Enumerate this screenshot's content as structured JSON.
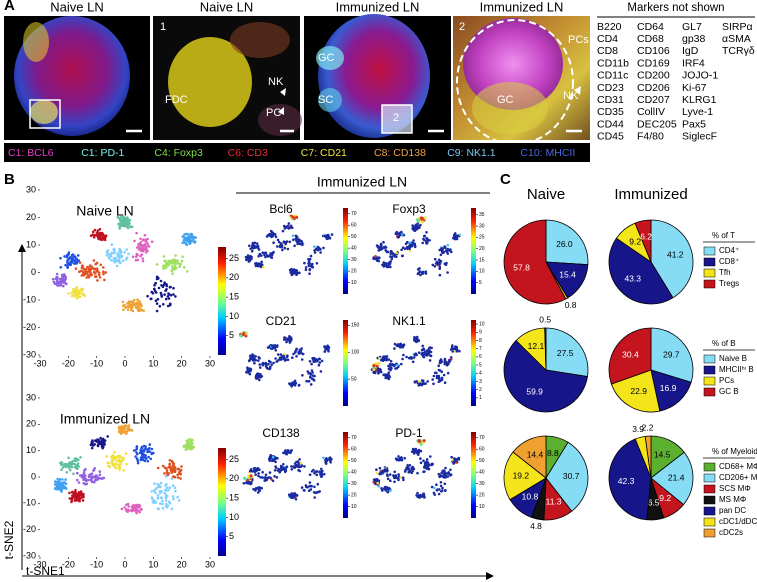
{
  "panel_a": {
    "label": "A",
    "images": [
      {
        "title": "Naive LN",
        "annotations": []
      },
      {
        "title": "Naive LN",
        "annotations": [
          "1",
          "FDC",
          "NK",
          "PC"
        ]
      },
      {
        "title": "Immunized LN",
        "annotations": [
          "GC",
          "SC",
          "2"
        ]
      },
      {
        "title": "Immunized LN",
        "annotations": [
          "2",
          "PCs",
          "GC",
          "NK"
        ]
      }
    ],
    "channels": [
      {
        "text": "C1: BCL6",
        "color": "#e040c8"
      },
      {
        "text": "C1: PD-1",
        "color": "#6ff0f0"
      },
      {
        "text": "C4: Foxp3",
        "color": "#7ee04a"
      },
      {
        "text": "C6: CD3",
        "color": "#e8303a"
      },
      {
        "text": "C7: CD21",
        "color": "#f0e040"
      },
      {
        "text": "C8: CD138",
        "color": "#f0a040"
      },
      {
        "text": "C9: NK1.1",
        "color": "#78c8f0"
      },
      {
        "text": "C10: MHCII",
        "color": "#4a6ae0"
      }
    ],
    "markers": {
      "title": "Markers not shown",
      "columns": [
        [
          "B220",
          "CD4",
          "CD8",
          "CD11b",
          "CD11c",
          "CD23",
          "CD31",
          "CD35",
          "CD44",
          "CD45"
        ],
        [
          "CD64",
          "CD68",
          "CD106",
          "CD169",
          "CD200",
          "CD206",
          "CD207",
          "CollIV",
          "DEC205",
          "F4/80"
        ],
        [
          "GL7",
          "gp38",
          "IgD",
          "IRF4",
          "JOJO-1",
          "Ki-67",
          "KLRG1",
          "Lyve-1",
          "Pax5",
          "SiglecF"
        ],
        [
          "SIRPα",
          "αSMA",
          "TCRγδ"
        ]
      ]
    }
  },
  "panel_b": {
    "label": "B",
    "x_label": "t-SNE1",
    "y_label": "t-SNE2",
    "xlim": [
      -30,
      30
    ],
    "ylim": [
      -30,
      30
    ],
    "xticks": [
      -30,
      -20,
      -10,
      0,
      10,
      20,
      30
    ],
    "yticks": [
      -30,
      -20,
      -10,
      0,
      10,
      20,
      30
    ],
    "tsne": [
      {
        "title": "Naive LN"
      },
      {
        "title": "Immunized LN"
      }
    ],
    "colorbar": {
      "lim": [
        0,
        28
      ],
      "ticks": [
        5,
        10,
        15,
        20,
        25
      ]
    },
    "markers_title": "Immunized LN",
    "markers": [
      {
        "title": "Bcl6",
        "lim": [
          0,
          75
        ],
        "ticks": [
          10,
          20,
          30,
          40,
          50,
          60,
          70
        ]
      },
      {
        "title": "Foxp3",
        "lim": [
          0,
          38
        ],
        "ticks": [
          5,
          10,
          15,
          20,
          25,
          30,
          35
        ]
      },
      {
        "title": "CD21",
        "lim": [
          0,
          160
        ],
        "ticks": [
          50,
          100,
          150
        ]
      },
      {
        "title": "NK1.1",
        "lim": [
          0,
          10.5
        ],
        "ticks": [
          1,
          2,
          3,
          4,
          5,
          6,
          7,
          8,
          9,
          10
        ]
      },
      {
        "title": "CD138",
        "lim": [
          0,
          75
        ],
        "ticks": [
          10,
          20,
          30,
          40,
          50,
          60,
          70
        ]
      },
      {
        "title": "PD-1",
        "lim": [
          0,
          75
        ],
        "ticks": [
          10,
          20,
          30,
          40,
          50,
          60,
          70
        ]
      }
    ]
  },
  "panel_c": {
    "label": "C",
    "columns": [
      "Naive",
      "Immunized"
    ],
    "groups": [
      {
        "type": "pie",
        "legend_title": "% of T",
        "legend": [
          {
            "name": "CD4⁺",
            "color": "#86dcf4"
          },
          {
            "name": "CD8⁺",
            "color": "#16168a"
          },
          {
            "name": "Tfh",
            "color": "#f4e41a"
          },
          {
            "name": "Tregs",
            "color": "#c4141e"
          }
        ],
        "pies": [
          {
            "values": [
              26,
              15.4,
              0.8,
              57.8
            ],
            "value_labels": [
              "26.0",
              "15.4",
              "0.8",
              "57.8"
            ]
          },
          {
            "values": [
              41.2,
              43.3,
              9.2,
              6.2
            ],
            "value_labels": [
              "41.2",
              "43.3",
              "9.2",
              "6.2"
            ]
          }
        ]
      },
      {
        "type": "pie",
        "legend_title": "% of B",
        "legend": [
          {
            "name": "Naive B",
            "color": "#86dcf4"
          },
          {
            "name": "MHCIIʰⁱ B",
            "color": "#16168a"
          },
          {
            "name": "PCs",
            "color": "#f4e41a"
          },
          {
            "name": "GC B",
            "color": "#c4141e"
          }
        ],
        "pies": [
          {
            "values": [
              27.5,
              59.9,
              12.1,
              0.5
            ],
            "value_labels": [
              "27.5",
              "59.9",
              "12.1",
              "0.5"
            ]
          },
          {
            "values": [
              29.7,
              16.9,
              22.9,
              30.4
            ],
            "value_labels": [
              "29.7",
              "16.9",
              "22.9",
              "30.4"
            ]
          }
        ]
      },
      {
        "type": "pie",
        "legend_title": "% of Myeloid",
        "legend": [
          {
            "name": "CD68+ MΦ",
            "color": "#5cb030"
          },
          {
            "name": "CD206+ MΦ",
            "color": "#86dcf4"
          },
          {
            "name": "SCS MΦ",
            "color": "#c4141e"
          },
          {
            "name": "MS MΦ",
            "color": "#111111"
          },
          {
            "name": "pan DC",
            "color": "#16168a"
          },
          {
            "name": "cDC1/dDCs",
            "color": "#f4e41a"
          },
          {
            "name": "cDC2s",
            "color": "#f0a030"
          }
        ],
        "pies": [
          {
            "values": [
              8.8,
              30.7,
              11.3,
              4.8,
              10.8,
              19.2,
              14.4
            ],
            "value_labels": [
              "8.8",
              "30.7",
              "11.3",
              "4.8",
              "10.8",
              "19.2",
              "14.4"
            ]
          },
          {
            "values": [
              14.5,
              21.4,
              9.2,
              6.5,
              42.3,
              3.9,
              2.2
            ],
            "value_labels": [
              "14.5",
              "21.4",
              "9.2",
              "6.5",
              "42.3",
              "3.9",
              "2.2"
            ]
          }
        ]
      }
    ]
  }
}
